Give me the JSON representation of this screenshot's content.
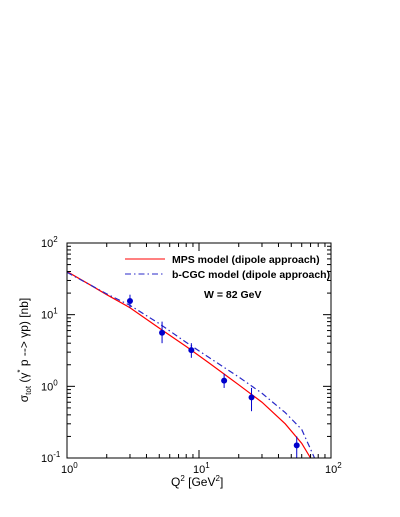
{
  "chart_data": {
    "type": "line",
    "x_scale": "log",
    "y_scale": "log",
    "xlim": [
      1,
      100
    ],
    "ylim": [
      0.1,
      100
    ],
    "x_ticks": [
      {
        "value": 1,
        "base": "10",
        "exp": "0"
      },
      {
        "value": 10,
        "base": "10",
        "exp": "1"
      },
      {
        "value": 100,
        "base": "10",
        "exp": "2"
      }
    ],
    "y_ticks": [
      {
        "value": 0.1,
        "base": "10",
        "exp": "-1"
      },
      {
        "value": 1,
        "base": "10",
        "exp": "0"
      },
      {
        "value": 10,
        "base": "10",
        "exp": "1"
      },
      {
        "value": 100,
        "base": "10",
        "exp": "2"
      }
    ],
    "xlabel": {
      "main": "Q",
      "sup": "2",
      "rest": " [GeV",
      "sup2": "2",
      "end": "]"
    },
    "ylabel": {
      "sigma": "σ",
      "sub": "tot",
      "rest": " (γ",
      "sup": "*",
      "rest2": " p --> γp) [nb]"
    },
    "annotation": "W = 82 GeV",
    "legend_position": "top-right",
    "series": [
      {
        "name": "MPS model (dipole approach)",
        "color": "#ff0000",
        "style": "solid",
        "x": [
          1,
          1.5,
          2,
          3,
          5,
          8,
          12,
          20,
          30,
          45,
          60,
          70
        ],
        "y": [
          40,
          26,
          19,
          12.5,
          6.5,
          3.6,
          2.1,
          1.05,
          0.6,
          0.3,
          0.16,
          0.1
        ]
      },
      {
        "name": "b-CGC model (dipole approach)",
        "color": "#2828c8",
        "style": "dashdot",
        "x": [
          1,
          1.5,
          2,
          3,
          5,
          8,
          12,
          20,
          30,
          45,
          60,
          75
        ],
        "y": [
          39,
          26,
          19.5,
          13.5,
          7.5,
          4.1,
          2.5,
          1.35,
          0.8,
          0.43,
          0.25,
          0.1
        ]
      },
      {
        "name": "data",
        "color": "#0000cc",
        "style": "markers",
        "points": [
          {
            "x": 3,
            "y": 15.5,
            "ylo": 12.5,
            "yhi": 19
          },
          {
            "x": 5.25,
            "y": 5.6,
            "ylo": 4,
            "yhi": 8
          },
          {
            "x": 8.75,
            "y": 3.2,
            "ylo": 2.5,
            "yhi": 4
          },
          {
            "x": 15.5,
            "y": 1.2,
            "ylo": 0.95,
            "yhi": 1.5
          },
          {
            "x": 25,
            "y": 0.7,
            "ylo": 0.45,
            "yhi": 0.95
          },
          {
            "x": 55,
            "y": 0.15,
            "ylo": 0.1,
            "yhi": 0.2
          }
        ]
      }
    ]
  }
}
